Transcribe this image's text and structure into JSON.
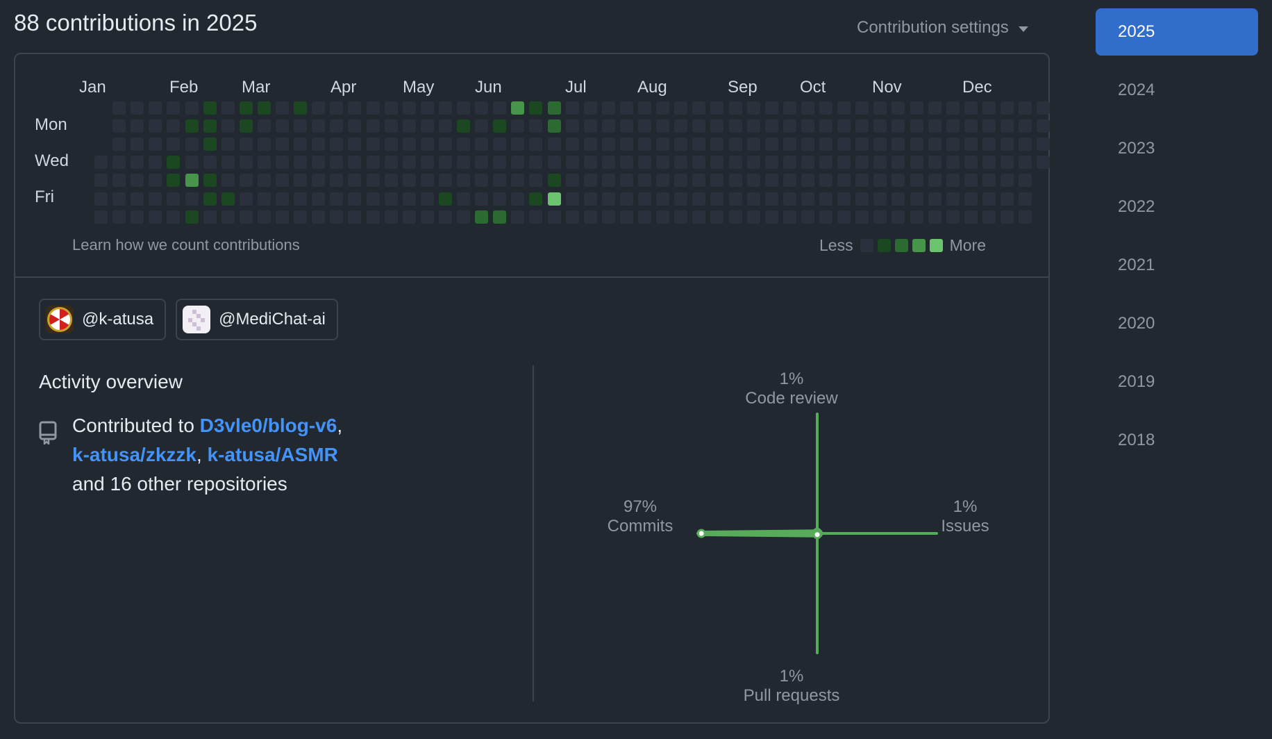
{
  "header": {
    "title": "88 contributions in 2025",
    "settings_label": "Contribution settings"
  },
  "calendar": {
    "months": [
      "Jan",
      "Feb",
      "Mar",
      "Apr",
      "May",
      "Jun",
      "Jul",
      "Aug",
      "Sep",
      "Oct",
      "Nov",
      "Dec"
    ],
    "day_labels": [
      "Mon",
      "Wed",
      "Fri"
    ],
    "learn_link": "Learn how we count contributions",
    "legend_less": "Less",
    "legend_more": "More",
    "level_colors": [
      "#2a313c",
      "#1b4721",
      "#2b6a30",
      "#46954a",
      "#6bc46d"
    ],
    "first_weekday": 3,
    "days_in_year": 365,
    "contribution_levels": [
      {
        "week": 6,
        "day": 0,
        "level": 2
      },
      {
        "week": 6,
        "day": 1,
        "level": 2
      },
      {
        "week": 6,
        "day": 2,
        "level": 2
      },
      {
        "week": 6,
        "day": 4,
        "level": 2
      },
      {
        "week": 6,
        "day": 5,
        "level": 2
      },
      {
        "week": 5,
        "day": 1,
        "level": 2
      },
      {
        "week": 5,
        "day": 4,
        "level": 4
      },
      {
        "week": 5,
        "day": 6,
        "level": 2
      },
      {
        "week": 4,
        "day": 3,
        "level": 2
      },
      {
        "week": 4,
        "day": 4,
        "level": 2
      },
      {
        "week": 7,
        "day": 5,
        "level": 2
      },
      {
        "week": 8,
        "day": 0,
        "level": 2
      },
      {
        "week": 8,
        "day": 1,
        "level": 2
      },
      {
        "week": 9,
        "day": 0,
        "level": 2
      },
      {
        "week": 11,
        "day": 0,
        "level": 2
      },
      {
        "week": 19,
        "day": 5,
        "level": 2
      },
      {
        "week": 20,
        "day": 1,
        "level": 2
      },
      {
        "week": 21,
        "day": 6,
        "level": 3
      },
      {
        "week": 22,
        "day": 1,
        "level": 2
      },
      {
        "week": 22,
        "day": 6,
        "level": 3
      },
      {
        "week": 22,
        "day": 7,
        "level": 2
      },
      {
        "week": 23,
        "day": 0,
        "level": 4
      },
      {
        "week": 24,
        "day": 0,
        "level": 2
      },
      {
        "week": 24,
        "day": 5,
        "level": 2
      },
      {
        "week": 25,
        "day": 0,
        "level": 3
      },
      {
        "week": 25,
        "day": 1,
        "level": 3
      },
      {
        "week": 25,
        "day": 4,
        "level": 2
      },
      {
        "week": 25,
        "day": 5,
        "level": 5
      }
    ]
  },
  "orgs": [
    {
      "handle": "@k-atusa"
    },
    {
      "handle": "@MediChat-ai"
    }
  ],
  "overview": {
    "title": "Activity overview",
    "contributed_prefix": "Contributed to",
    "repos": [
      "D3vle0/blog-v6",
      "k-atusa/zkzzk",
      "k-atusa/ASMR"
    ],
    "sep1": ",",
    "sep2": ",",
    "other": "and 16 other repositories"
  },
  "radar": {
    "code_review": {
      "pct": "1%",
      "label": "Code review",
      "value": 1
    },
    "issues": {
      "pct": "1%",
      "label": "Issues",
      "value": 1
    },
    "pull_requests": {
      "pct": "1%",
      "label": "Pull requests",
      "value": 1
    },
    "commits": {
      "pct": "97%",
      "label": "Commits",
      "value": 97
    },
    "accent": "#57ab5a"
  },
  "years": [
    "2025",
    "2024",
    "2023",
    "2022",
    "2021",
    "2020",
    "2019",
    "2018"
  ],
  "selected_year": "2025"
}
